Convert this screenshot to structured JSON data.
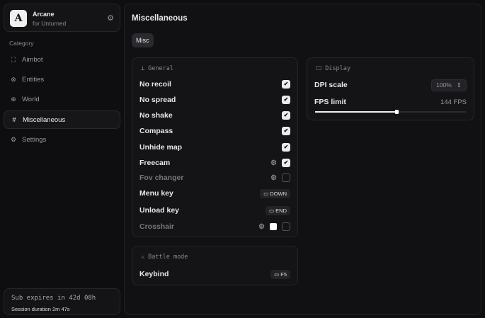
{
  "brand": {
    "logo": "A",
    "name": "Arcane",
    "subtitle": "for Unturned",
    "icon": "gear-icon"
  },
  "sidebar": {
    "category_label": "Category",
    "items": [
      {
        "label": "Aimbot",
        "icon": "crosshair-icon",
        "active": false
      },
      {
        "label": "Entities",
        "icon": "entities-icon",
        "active": false
      },
      {
        "label": "World",
        "icon": "globe-icon",
        "active": false
      },
      {
        "label": "Miscellaneous",
        "icon": "grid-icon",
        "active": true
      },
      {
        "label": "Settings",
        "icon": "settings-icon",
        "active": false
      }
    ]
  },
  "footer": {
    "subscription": "Sub expires in 42d 08h",
    "session": "Session duration 2m 47s"
  },
  "main": {
    "title": "Miscellaneous",
    "tab": "Misc"
  },
  "general": {
    "title": "General",
    "rows": [
      {
        "label": "No recoil",
        "checked": true
      },
      {
        "label": "No spread",
        "checked": true
      },
      {
        "label": "No shake",
        "checked": true
      },
      {
        "label": "Compass",
        "checked": true
      },
      {
        "label": "Unhide map",
        "checked": true
      },
      {
        "label": "Freecam",
        "checked": true,
        "settings": true
      },
      {
        "label": "Fov changer",
        "checked": false,
        "settings": true,
        "disabled": true
      },
      {
        "label": "Menu key",
        "key": "DOWN"
      },
      {
        "label": "Unload key",
        "key": "END"
      },
      {
        "label": "Crosshair",
        "checked": false,
        "settings": true,
        "color": "#ffffff",
        "disabled": true
      }
    ]
  },
  "display": {
    "title": "Display",
    "dpi_label": "DPI scale",
    "dpi_value": "100%",
    "fps_label": "FPS limit",
    "fps_value": "144 FPS",
    "fps_fill_percent": 54
  },
  "battle": {
    "title": "Battle mode",
    "keybind_label": "Keybind",
    "keybind_value": "F5"
  }
}
